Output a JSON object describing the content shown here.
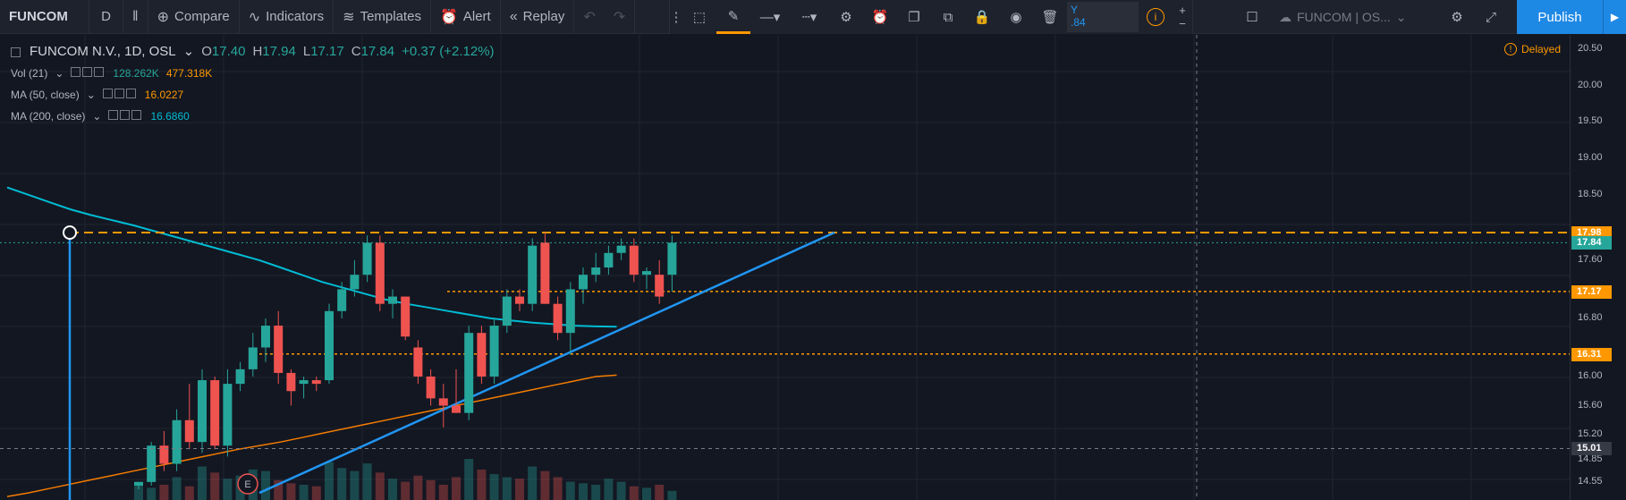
{
  "toolbar": {
    "symbol": "FUNCOM",
    "interval": "D",
    "compare": "Compare",
    "indicators": "Indicators",
    "templates": "Templates",
    "alert": "Alert",
    "replay": "Replay",
    "layout_name": "FUNCOM | OS...",
    "publish": "Publish"
  },
  "drawing_toolbar": {
    "field_line1": "Y",
    "field_line2": ".84"
  },
  "legend": {
    "title": "FUNCOM N.V., 1D, OSL",
    "open_label": "O",
    "open": "17.40",
    "high_label": "H",
    "high": "17.94",
    "low_label": "L",
    "low": "17.17",
    "close_label": "C",
    "close": "17.84",
    "change": "+0.37 (+2.12%)",
    "vol_label": "Vol (21)",
    "vol_value": "128.262K",
    "vol_ma": "477.318K",
    "ma50_label": "MA (50, close)",
    "ma50_value": "16.0227",
    "ma200_label": "MA (200, close)",
    "ma200_value": "16.6860"
  },
  "delayed": "Delayed",
  "earnings_marker": "E",
  "price_axis": {
    "ticks": [
      "20.50",
      "20.00",
      "19.50",
      "19.00",
      "18.50",
      "17.60",
      "16.80",
      "16.00",
      "15.60",
      "15.20",
      "14.85",
      "14.55"
    ],
    "tags": [
      {
        "value": "17.98",
        "color": "#ff9800"
      },
      {
        "value": "17.84",
        "color": "#26a69a"
      },
      {
        "value": "17.17",
        "color": "#ff9800"
      },
      {
        "value": "16.31",
        "color": "#ff9800"
      }
    ],
    "crosshair_value": "15.01"
  },
  "colors": {
    "up": "#26a69a",
    "down": "#ef5350",
    "ma50": "#f57c00",
    "ma200": "#00bcd4",
    "trendline": "#2196f3",
    "hline": "#ff9800",
    "publish": "#1e88e5"
  },
  "chart_data": {
    "type": "candlestick",
    "candles": [
      {
        "o": 14.5,
        "h": 14.55,
        "l": 14.45,
        "c": 14.55
      },
      {
        "o": 14.55,
        "h": 15.1,
        "l": 14.5,
        "c": 15.05
      },
      {
        "o": 15.05,
        "h": 15.25,
        "l": 14.7,
        "c": 14.8
      },
      {
        "o": 14.8,
        "h": 15.55,
        "l": 14.7,
        "c": 15.4
      },
      {
        "o": 15.4,
        "h": 15.9,
        "l": 15.0,
        "c": 15.1
      },
      {
        "o": 15.1,
        "h": 16.1,
        "l": 14.95,
        "c": 15.95
      },
      {
        "o": 15.95,
        "h": 16.0,
        "l": 15.0,
        "c": 15.05
      },
      {
        "o": 15.05,
        "h": 16.1,
        "l": 14.9,
        "c": 15.9
      },
      {
        "o": 15.9,
        "h": 16.2,
        "l": 15.8,
        "c": 16.1
      },
      {
        "o": 16.1,
        "h": 16.6,
        "l": 16.0,
        "c": 16.4
      },
      {
        "o": 16.4,
        "h": 16.8,
        "l": 16.2,
        "c": 16.7
      },
      {
        "o": 16.7,
        "h": 16.9,
        "l": 15.9,
        "c": 16.05
      },
      {
        "o": 16.05,
        "h": 16.1,
        "l": 15.6,
        "c": 15.8
      },
      {
        "o": 15.9,
        "h": 16.0,
        "l": 15.7,
        "c": 15.95
      },
      {
        "o": 15.95,
        "h": 16.0,
        "l": 15.8,
        "c": 15.9
      },
      {
        "o": 15.95,
        "h": 17.0,
        "l": 15.9,
        "c": 16.9
      },
      {
        "o": 16.9,
        "h": 17.3,
        "l": 16.8,
        "c": 17.2
      },
      {
        "o": 17.2,
        "h": 17.6,
        "l": 17.1,
        "c": 17.4
      },
      {
        "o": 17.4,
        "h": 17.94,
        "l": 17.3,
        "c": 17.84
      },
      {
        "o": 17.84,
        "h": 17.94,
        "l": 16.9,
        "c": 17.0
      },
      {
        "o": 17.0,
        "h": 17.2,
        "l": 16.8,
        "c": 17.1
      },
      {
        "o": 17.1,
        "h": 17.1,
        "l": 16.5,
        "c": 16.55
      },
      {
        "o": 16.4,
        "h": 16.5,
        "l": 15.9,
        "c": 16.0
      },
      {
        "o": 16.0,
        "h": 16.1,
        "l": 15.6,
        "c": 15.7
      },
      {
        "o": 15.7,
        "h": 15.9,
        "l": 15.3,
        "c": 15.6
      },
      {
        "o": 15.6,
        "h": 16.1,
        "l": 15.5,
        "c": 15.5
      },
      {
        "o": 15.5,
        "h": 16.7,
        "l": 15.4,
        "c": 16.6
      },
      {
        "o": 16.6,
        "h": 16.7,
        "l": 15.9,
        "c": 16.0
      },
      {
        "o": 16.0,
        "h": 16.8,
        "l": 15.9,
        "c": 16.7
      },
      {
        "o": 16.7,
        "h": 17.2,
        "l": 16.6,
        "c": 17.1
      },
      {
        "o": 17.1,
        "h": 17.2,
        "l": 16.9,
        "c": 17.0
      },
      {
        "o": 17.0,
        "h": 17.9,
        "l": 16.9,
        "c": 17.8
      },
      {
        "o": 17.84,
        "h": 17.98,
        "l": 17.0,
        "c": 17.0
      },
      {
        "o": 17.0,
        "h": 17.1,
        "l": 16.5,
        "c": 16.6
      },
      {
        "o": 16.6,
        "h": 17.3,
        "l": 16.3,
        "c": 17.2
      },
      {
        "o": 17.2,
        "h": 17.5,
        "l": 17.0,
        "c": 17.4
      },
      {
        "o": 17.4,
        "h": 17.7,
        "l": 17.3,
        "c": 17.5
      },
      {
        "o": 17.5,
        "h": 17.8,
        "l": 17.4,
        "c": 17.7
      },
      {
        "o": 17.7,
        "h": 17.9,
        "l": 17.6,
        "c": 17.8
      },
      {
        "o": 17.8,
        "h": 17.9,
        "l": 17.3,
        "c": 17.4
      },
      {
        "o": 17.4,
        "h": 17.5,
        "l": 17.2,
        "c": 17.45
      },
      {
        "o": 17.4,
        "h": 17.6,
        "l": 17.0,
        "c": 17.1
      },
      {
        "o": 17.4,
        "h": 17.94,
        "l": 17.17,
        "c": 17.84
      }
    ],
    "volume": [
      12,
      8,
      10,
      15,
      9,
      22,
      18,
      14,
      16,
      20,
      19,
      13,
      11,
      10,
      9,
      25,
      21,
      19,
      24,
      18,
      14,
      12,
      16,
      13,
      10,
      15,
      27,
      20,
      17,
      15,
      14,
      22,
      19,
      15,
      12,
      11,
      10,
      14,
      12,
      9,
      8,
      10,
      6
    ],
    "ma50": [
      14.35,
      14.4,
      14.46,
      14.52,
      14.58,
      14.64,
      14.7,
      14.76,
      14.82,
      14.88,
      14.94,
      15.0,
      15.05,
      15.1,
      15.16,
      15.22,
      15.28,
      15.34,
      15.4,
      15.46,
      15.52,
      15.58,
      15.64,
      15.7,
      15.76,
      15.82,
      15.88,
      15.94,
      16.0,
      16.02
    ],
    "ma200": [
      18.6,
      18.5,
      18.4,
      18.3,
      18.22,
      18.15,
      18.08,
      18.0,
      17.92,
      17.84,
      17.76,
      17.68,
      17.6,
      17.5,
      17.4,
      17.3,
      17.22,
      17.14,
      17.06,
      17.0,
      16.95,
      16.9,
      16.85,
      16.8,
      16.77,
      16.74,
      16.72,
      16.7,
      16.69,
      16.686
    ],
    "horizontal_levels": [
      17.98,
      17.17,
      16.31
    ],
    "trendline": {
      "from": [
        12,
        14.4
      ],
      "to": [
        50,
        17.98
      ]
    },
    "yrange": [
      14.45,
      20.6
    ]
  }
}
